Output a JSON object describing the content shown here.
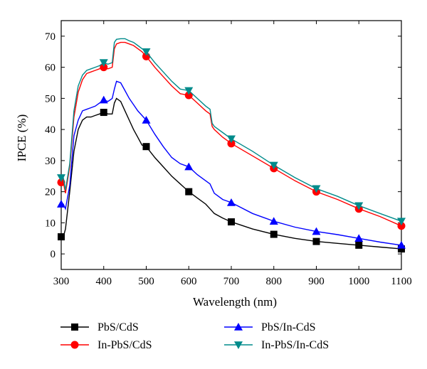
{
  "chart_data": {
    "type": "line",
    "title": "",
    "xlabel": "Wavelength (nm)",
    "ylabel": "IPCE (%)",
    "xlim": [
      300,
      1100
    ],
    "ylim": [
      -5,
      75
    ],
    "xticks": [
      300,
      400,
      500,
      600,
      700,
      800,
      900,
      1000,
      1100
    ],
    "yticks": [
      0,
      10,
      20,
      30,
      40,
      50,
      60,
      70
    ],
    "grid": false,
    "legend_position": "bottom",
    "series": [
      {
        "name": "PbS/CdS",
        "color": "#000000",
        "marker": "square",
        "x": [
          300,
          305,
          310,
          320,
          330,
          340,
          350,
          360,
          370,
          380,
          390,
          400,
          410,
          420,
          425,
          430,
          440,
          450,
          460,
          470,
          480,
          490,
          500,
          520,
          540,
          560,
          580,
          600,
          620,
          640,
          650,
          660,
          680,
          700,
          750,
          800,
          850,
          900,
          950,
          1000,
          1050,
          1100
        ],
        "y": [
          5.5,
          5.5,
          8,
          20,
          33,
          40,
          43,
          44,
          44,
          44.5,
          45,
          45.5,
          45,
          45,
          48.5,
          50,
          49,
          46,
          43,
          40,
          37.5,
          35,
          34.5,
          31,
          28,
          25,
          22.5,
          20,
          18,
          16,
          14.5,
          13,
          11.5,
          10.3,
          8,
          6.3,
          5,
          4,
          3.4,
          2.8,
          2.2,
          1.6
        ],
        "marker_x": [
          300,
          400,
          500,
          600,
          700,
          800,
          900,
          1000,
          1100
        ],
        "marker_y": [
          5.5,
          45.5,
          34.5,
          20,
          10.3,
          6.3,
          4,
          2.8,
          1.6
        ]
      },
      {
        "name": "In-PbS/CdS",
        "color": "#ff0000",
        "marker": "circle",
        "x": [
          300,
          305,
          310,
          320,
          330,
          340,
          350,
          360,
          370,
          380,
          390,
          400,
          410,
          420,
          425,
          430,
          440,
          450,
          460,
          470,
          480,
          490,
          500,
          520,
          540,
          560,
          580,
          600,
          620,
          640,
          650,
          655,
          660,
          680,
          700,
          750,
          800,
          850,
          900,
          950,
          1000,
          1050,
          1100
        ],
        "y": [
          23,
          23,
          19.5,
          28,
          44,
          52,
          56,
          58,
          58.5,
          59,
          59.5,
          60,
          59.5,
          60,
          66,
          67.5,
          68,
          68,
          67.5,
          67,
          66,
          65,
          63.5,
          60,
          57,
          54,
          51.5,
          51,
          48.5,
          46,
          45,
          41,
          40,
          37.5,
          35.5,
          31.5,
          27.5,
          23.5,
          20,
          17.5,
          14.5,
          12,
          9
        ],
        "marker_x": [
          300,
          400,
          500,
          600,
          700,
          800,
          900,
          1000,
          1100
        ],
        "marker_y": [
          23,
          60,
          63.5,
          51,
          35.5,
          27.5,
          20,
          14.5,
          9
        ]
      },
      {
        "name": "PbS/In-CdS",
        "color": "#0000ff",
        "marker": "triangle-up",
        "x": [
          300,
          305,
          310,
          320,
          330,
          340,
          350,
          360,
          370,
          380,
          390,
          400,
          410,
          420,
          425,
          430,
          440,
          450,
          460,
          470,
          480,
          490,
          500,
          520,
          540,
          560,
          580,
          600,
          620,
          640,
          650,
          655,
          660,
          680,
          700,
          750,
          800,
          850,
          900,
          950,
          1000,
          1050,
          1100
        ],
        "y": [
          16,
          16,
          14.5,
          22,
          38,
          43,
          46,
          46.5,
          47,
          47.5,
          48.5,
          49.5,
          49,
          50,
          53,
          55.5,
          55,
          52.5,
          50,
          48,
          46,
          44.5,
          43,
          38.5,
          34.5,
          31,
          29,
          28,
          25.5,
          23.5,
          22.5,
          21,
          19.5,
          17.5,
          16.5,
          13,
          10.5,
          8.6,
          7.2,
          6.2,
          5,
          3.8,
          2.8
        ],
        "marker_x": [
          300,
          400,
          500,
          600,
          700,
          800,
          900,
          1000,
          1100
        ],
        "marker_y": [
          16,
          49.5,
          43,
          28,
          16.5,
          10.5,
          7.2,
          5,
          2.8
        ]
      },
      {
        "name": "In-PbS/In-CdS",
        "color": "#008b8b",
        "marker": "triangle-down",
        "x": [
          300,
          305,
          310,
          320,
          330,
          340,
          350,
          360,
          370,
          380,
          390,
          400,
          410,
          420,
          425,
          430,
          440,
          450,
          460,
          470,
          480,
          490,
          500,
          520,
          540,
          560,
          580,
          600,
          620,
          640,
          650,
          655,
          660,
          680,
          700,
          750,
          800,
          850,
          900,
          950,
          1000,
          1050,
          1100
        ],
        "y": [
          24.5,
          24.5,
          20.5,
          29,
          46,
          54,
          57.5,
          59,
          59.5,
          60,
          60.5,
          61.5,
          61,
          61.5,
          68,
          69,
          69.2,
          69.2,
          68.5,
          68,
          67,
          66,
          65,
          61.5,
          58.5,
          55.5,
          53,
          52.5,
          50,
          47.5,
          46.5,
          42,
          41,
          39,
          37,
          33,
          28.5,
          24.5,
          21,
          18.5,
          15.5,
          13,
          10.5
        ],
        "marker_x": [
          300,
          400,
          500,
          600,
          700,
          800,
          900,
          1000,
          1100
        ],
        "marker_y": [
          24.5,
          61.5,
          65,
          52.5,
          37,
          28.5,
          21,
          15.5,
          10.5
        ]
      }
    ]
  }
}
